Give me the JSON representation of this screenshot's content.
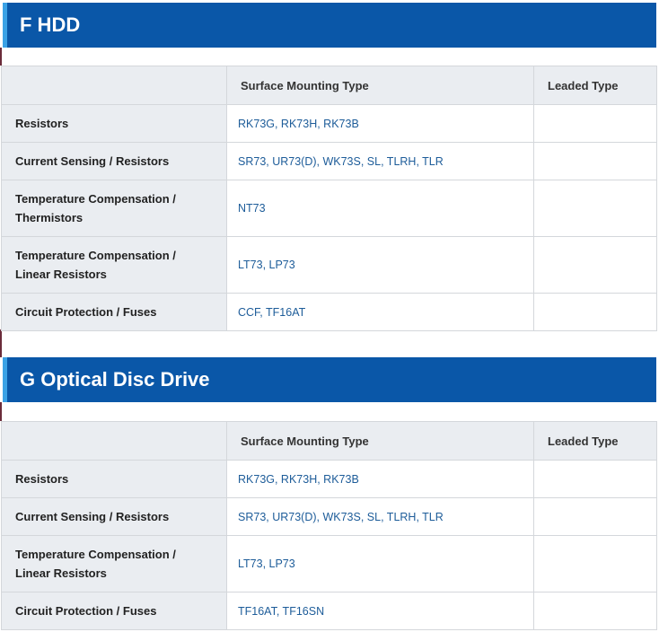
{
  "sections": [
    {
      "title": "F HDD",
      "columns": [
        "",
        "Surface Mounting Type",
        "Leaded Type"
      ],
      "rows": [
        {
          "category": "Resistors",
          "category_lines": [
            "Resistors"
          ],
          "surface": "RK73G, RK73H, RK73B",
          "leaded": ""
        },
        {
          "category": "Current Sensing / Resistors",
          "category_lines": [
            "Current Sensing / Resistors"
          ],
          "surface": "SR73, UR73(D), WK73S, SL, TLRH, TLR",
          "leaded": ""
        },
        {
          "category": "Temperature Compensation / Thermistors",
          "category_lines": [
            "Temperature Compensation /",
            "Thermistors"
          ],
          "surface": "NT73",
          "leaded": ""
        },
        {
          "category": "Temperature Compensation / Linear Resistors",
          "category_lines": [
            "Temperature Compensation /",
            "Linear Resistors"
          ],
          "surface": "LT73, LP73",
          "leaded": ""
        },
        {
          "category": "Circuit Protection / Fuses",
          "category_lines": [
            "Circuit Protection / Fuses"
          ],
          "surface": "CCF, TF16AT",
          "leaded": ""
        }
      ]
    },
    {
      "title": "G Optical Disc Drive",
      "columns": [
        "",
        "Surface Mounting Type",
        "Leaded Type"
      ],
      "rows": [
        {
          "category": "Resistors",
          "category_lines": [
            "Resistors"
          ],
          "surface": "RK73G, RK73H, RK73B",
          "leaded": ""
        },
        {
          "category": "Current Sensing / Resistors",
          "category_lines": [
            "Current Sensing / Resistors"
          ],
          "surface": "SR73, UR73(D), WK73S, SL, TLRH, TLR",
          "leaded": ""
        },
        {
          "category": "Temperature Compensation / Linear Resistors",
          "category_lines": [
            "Temperature Compensation /",
            "Linear Resistors"
          ],
          "surface": "LT73, LP73",
          "leaded": ""
        },
        {
          "category": "Circuit Protection / Fuses",
          "category_lines": [
            "Circuit Protection / Fuses"
          ],
          "surface": "TF16AT, TF16SN",
          "leaded": ""
        }
      ]
    }
  ]
}
